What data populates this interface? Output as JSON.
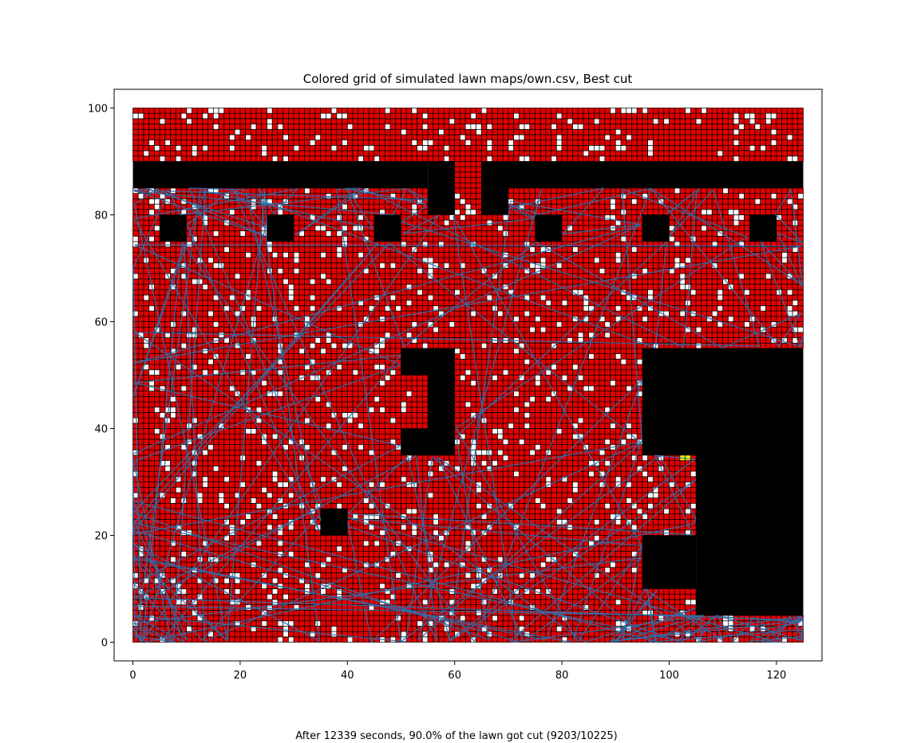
{
  "figure": {
    "caption": "After 12339 seconds, 90.0% of the lawn got cut (9203/10225)"
  },
  "chart_data": {
    "type": "heatmap",
    "title": "Colored grid of simulated lawn maps/own.csv, Best cut",
    "xlabel": "",
    "ylabel": "",
    "xlim": [
      -3.5,
      128.5
    ],
    "ylim": [
      -3.5,
      103.5
    ],
    "x_ticks": [
      0,
      20,
      40,
      60,
      80,
      100,
      120
    ],
    "y_ticks": [
      0,
      20,
      40,
      60,
      80,
      100
    ],
    "x_tick_labels": [
      "0",
      "20",
      "40",
      "60",
      "80",
      "100",
      "120"
    ],
    "y_tick_labels": [
      "0",
      "20",
      "40",
      "60",
      "80",
      "100"
    ],
    "grid": false,
    "lawn_extent": {
      "x": [
        0,
        125
      ],
      "y": [
        0,
        100
      ]
    },
    "stats": {
      "elapsed_seconds": 12339,
      "percent_cut": 90.0,
      "cut_cells": 9203,
      "total_cells": 10225
    },
    "colors": {
      "cut": "#e00000",
      "uncut": "#ffffff",
      "obstacle": "#000000",
      "cell_border": "#000000",
      "special": "#ffff00",
      "path": "#2f6ea8"
    },
    "obstacles": [
      {
        "x": [
          0,
          55
        ],
        "y": [
          85,
          90
        ]
      },
      {
        "x": [
          55,
          60
        ],
        "y": [
          80,
          90
        ]
      },
      {
        "x": [
          65,
          125
        ],
        "y": [
          85,
          90
        ]
      },
      {
        "x": [
          65,
          70
        ],
        "y": [
          80,
          85
        ]
      },
      {
        "x": [
          5,
          10
        ],
        "y": [
          75,
          80
        ]
      },
      {
        "x": [
          25,
          30
        ],
        "y": [
          75,
          80
        ]
      },
      {
        "x": [
          45,
          50
        ],
        "y": [
          75,
          80
        ]
      },
      {
        "x": [
          75,
          80
        ],
        "y": [
          75,
          80
        ]
      },
      {
        "x": [
          95,
          100
        ],
        "y": [
          75,
          80
        ]
      },
      {
        "x": [
          115,
          120
        ],
        "y": [
          75,
          80
        ]
      },
      {
        "x": [
          50,
          60
        ],
        "y": [
          50,
          55
        ]
      },
      {
        "x": [
          55,
          60
        ],
        "y": [
          35,
          55
        ]
      },
      {
        "x": [
          50,
          60
        ],
        "y": [
          35,
          40
        ]
      },
      {
        "x": [
          35,
          40
        ],
        "y": [
          20,
          25
        ]
      },
      {
        "x": [
          95,
          125
        ],
        "y": [
          35,
          55
        ]
      },
      {
        "x": [
          105,
          125
        ],
        "y": [
          5,
          35
        ]
      },
      {
        "x": [
          95,
          105
        ],
        "y": [
          10,
          20
        ]
      }
    ],
    "special_cells": [
      {
        "x": 102.5,
        "y": 34.5
      },
      {
        "x": 103.5,
        "y": 34.5
      }
    ],
    "uncut_fraction": 0.1,
    "path_segment_count": 420
  }
}
